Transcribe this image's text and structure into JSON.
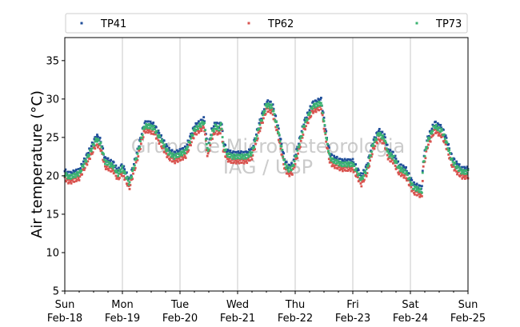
{
  "chart_data": {
    "type": "scatter",
    "ylabel": "Air temperature (°C)",
    "xlabel": "",
    "ylim": [
      5,
      38
    ],
    "yticks": [
      5,
      10,
      15,
      20,
      25,
      30,
      35
    ],
    "xlim_days": [
      0,
      7
    ],
    "x_ticks": [
      {
        "day": "Sun",
        "date": "Feb-18"
      },
      {
        "day": "Mon",
        "date": "Feb-19"
      },
      {
        "day": "Tue",
        "date": "Feb-20"
      },
      {
        "day": "Wed",
        "date": "Feb-21"
      },
      {
        "day": "Thu",
        "date": "Feb-22"
      },
      {
        "day": "Fri",
        "date": "Feb-23"
      },
      {
        "day": "Sat",
        "date": "Feb-24"
      },
      {
        "day": "Sun",
        "date": "Feb-25"
      }
    ],
    "grid": "vertical-major",
    "legend_position": "top",
    "watermark": [
      "Grupo de Micrometeorologia",
      "IAG / USP"
    ],
    "series": [
      {
        "name": "TP41",
        "color": "#1f4e9a",
        "offset": 0.4
      },
      {
        "name": "TP62",
        "color": "#d9534f",
        "offset": -0.6
      },
      {
        "name": "TP73",
        "color": "#3cb371",
        "offset": 0.0
      }
    ],
    "base_profile": {
      "x": [
        0,
        0.08,
        0.25,
        0.4,
        0.55,
        0.62,
        0.7,
        0.85,
        0.92,
        1.0,
        1.12,
        1.25,
        1.38,
        1.45,
        1.55,
        1.72,
        1.8,
        1.9,
        2.0,
        2.1,
        2.25,
        2.42,
        2.48,
        2.55,
        2.62,
        2.68,
        2.72,
        2.75,
        2.82,
        2.9,
        3.0,
        3.15,
        3.25,
        3.38,
        3.5,
        3.6,
        3.7,
        3.82,
        3.88,
        3.95,
        4.05,
        4.15,
        4.3,
        4.45,
        4.55,
        4.6,
        4.65,
        4.72,
        4.8,
        4.9,
        5.0,
        5.15,
        5.25,
        5.35,
        5.45,
        5.55,
        5.62,
        5.7,
        5.8,
        5.92,
        6.05,
        6.2,
        6.22,
        6.3,
        6.42,
        6.55,
        6.62,
        6.72,
        6.82,
        6.9,
        7.0
      ],
      "y": [
        20.2,
        19.8,
        20.3,
        22.5,
        24.8,
        24.2,
        21.8,
        21.2,
        20.2,
        21.0,
        19.0,
        22.5,
        26.4,
        26.5,
        26.2,
        24.0,
        23.0,
        22.5,
        22.8,
        23.2,
        26.0,
        27.0,
        23.0,
        25.5,
        26.5,
        26.0,
        26.8,
        24.0,
        22.8,
        22.5,
        22.5,
        22.5,
        23.0,
        26.5,
        29.2,
        29.0,
        26.0,
        21.5,
        20.8,
        21.0,
        23.5,
        26.5,
        29.0,
        29.5,
        24.5,
        22.5,
        22.0,
        21.8,
        21.5,
        21.5,
        21.5,
        19.5,
        21.0,
        24.0,
        25.5,
        24.8,
        22.8,
        22.5,
        21.0,
        20.5,
        18.5,
        18.0,
        21.5,
        24.5,
        26.5,
        25.8,
        24.5,
        22.0,
        21.0,
        20.5,
        20.5
      ]
    }
  }
}
